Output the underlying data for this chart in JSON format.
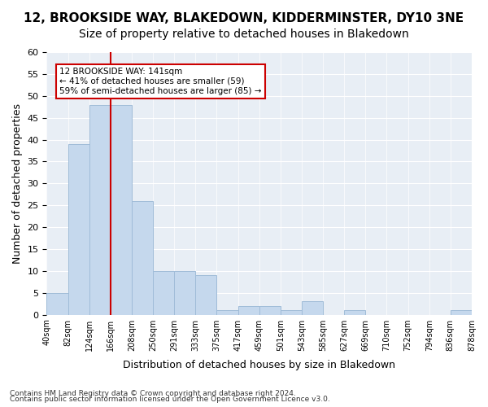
{
  "title1": "12, BROOKSIDE WAY, BLAKEDOWN, KIDDERMINSTER, DY10 3NE",
  "title2": "Size of property relative to detached houses in Blakedown",
  "xlabel": "Distribution of detached houses by size in Blakedown",
  "ylabel": "Number of detached properties",
  "bin_edges": [
    "40sqm",
    "82sqm",
    "124sqm",
    "166sqm",
    "208sqm",
    "250sqm",
    "291sqm",
    "333sqm",
    "375sqm",
    "417sqm",
    "459sqm",
    "501sqm",
    "543sqm",
    "585sqm",
    "627sqm",
    "669sqm",
    "710sqm",
    "752sqm",
    "794sqm",
    "836sqm",
    "878sqm"
  ],
  "bar_heights": [
    5,
    39,
    48,
    48,
    26,
    10,
    10,
    9,
    1,
    2,
    2,
    1,
    3,
    0,
    1,
    0,
    0,
    0,
    0,
    1
  ],
  "bar_color": "#c5d8ed",
  "bar_edge_color": "#a0bcd8",
  "red_line_color": "#cc0000",
  "red_line_x": 2.5,
  "annotation_text": "12 BROOKSIDE WAY: 141sqm\n← 41% of detached houses are smaller (59)\n59% of semi-detached houses are larger (85) →",
  "annotation_box_color": "#ffffff",
  "annotation_box_edge": "#cc0000",
  "ylim": [
    0,
    60
  ],
  "yticks": [
    0,
    5,
    10,
    15,
    20,
    25,
    30,
    35,
    40,
    45,
    50,
    55,
    60
  ],
  "background_color": "#e8eef5",
  "footer1": "Contains HM Land Registry data © Crown copyright and database right 2024.",
  "footer2": "Contains public sector information licensed under the Open Government Licence v3.0.",
  "title1_fontsize": 11,
  "title2_fontsize": 10,
  "xlabel_fontsize": 9,
  "ylabel_fontsize": 9
}
